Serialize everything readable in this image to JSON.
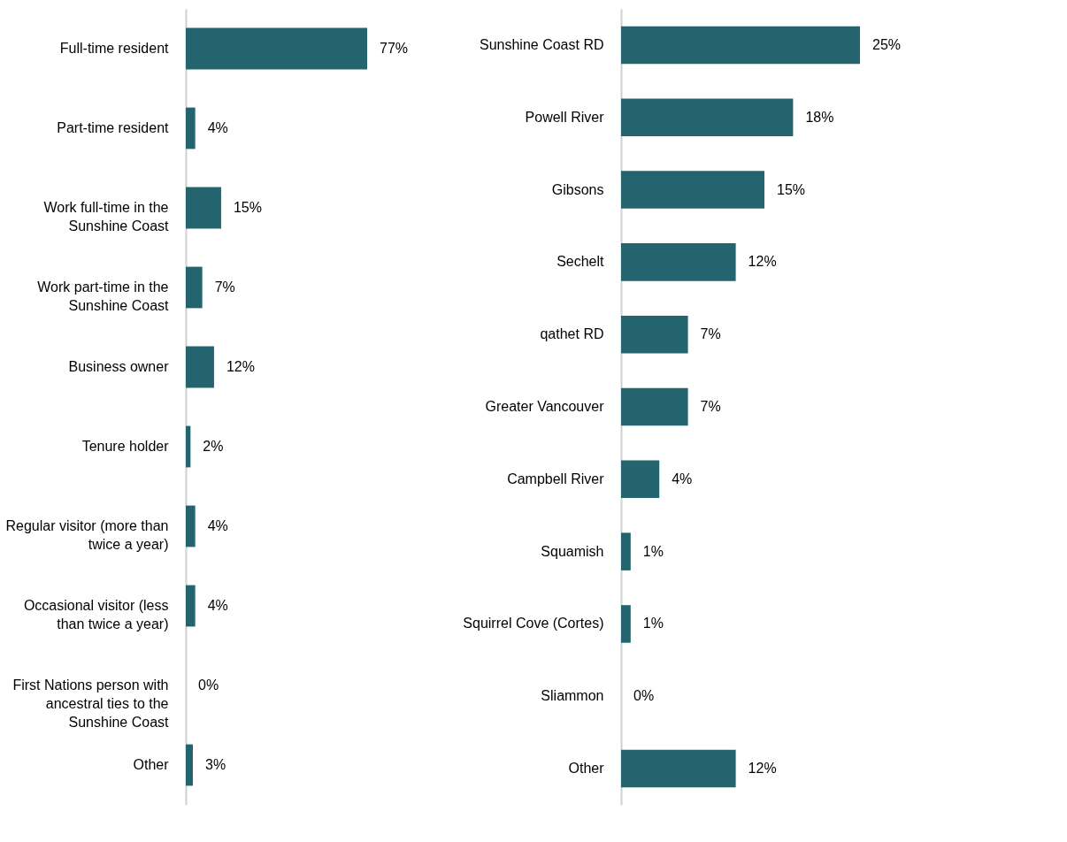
{
  "chart_data": [
    {
      "type": "bar",
      "orientation": "horizontal",
      "color": "#23646f",
      "categories": [
        "Full-time resident",
        "Part-time resident",
        "Work full-time in the Sunshine Coast",
        "Work part-time in the Sunshine Coast",
        "Business owner",
        "Tenure holder",
        "Regular visitor (more than twice a year)",
        "Occasional visitor (less than twice a year)",
        "First Nations person with ancestral ties to the Sunshine Coast",
        "Other"
      ],
      "values": [
        77,
        4,
        15,
        7,
        12,
        2,
        4,
        4,
        0,
        3
      ],
      "value_labels": [
        "77%",
        "4%",
        "15%",
        "7%",
        "12%",
        "2%",
        "4%",
        "4%",
        "0%",
        "3%"
      ]
    },
    {
      "type": "bar",
      "orientation": "horizontal",
      "color": "#23646f",
      "categories": [
        "Sunshine Coast RD",
        "Powell River",
        "Gibsons",
        "Sechelt",
        "qathet RD",
        "Greater Vancouver",
        "Campbell River",
        "Squamish",
        "Squirrel Cove (Cortes)",
        "Sliammon",
        "Other"
      ],
      "values": [
        25,
        18,
        15,
        12,
        7,
        7,
        4,
        1,
        1,
        0,
        12
      ],
      "value_labels": [
        "25%",
        "18%",
        "15%",
        "12%",
        "7%",
        "7%",
        "4%",
        "1%",
        "1%",
        "0%",
        "12%"
      ]
    }
  ]
}
